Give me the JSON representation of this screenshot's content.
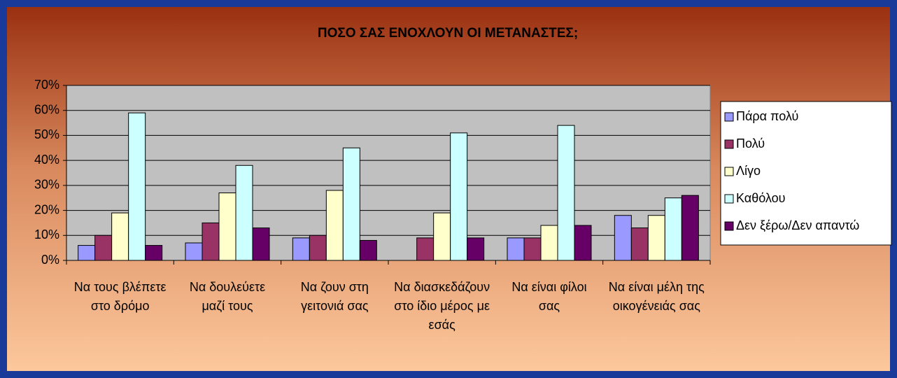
{
  "chart_data": {
    "type": "bar",
    "title": "ΠΟΣΟ ΣΑΣ ΕΝΟΧΛΟΥΝ ΟΙ ΜΕΤΑΝΑΣΤΕΣ;",
    "categories": [
      "Να τους βλέπετε στο δρόμο",
      "Να δουλεύετε μαζί τους",
      "Να ζουν στη γειτονιά σας",
      "Να διασκεδάζουν στο ίδιο μέρος με εσάς",
      "Να είναι φίλοι σας",
      "Να είναι μέλη της οικογένειάς σας"
    ],
    "series": [
      {
        "name": "Πάρα πολύ",
        "color": "#9999ff",
        "values": [
          6,
          7,
          9,
          null,
          9,
          18
        ]
      },
      {
        "name": "Πολύ",
        "color": "#993366",
        "values": [
          10,
          15,
          10,
          9,
          9,
          13
        ]
      },
      {
        "name": "Λίγο",
        "color": "#ffffcc",
        "values": [
          19,
          27,
          28,
          19,
          14,
          18
        ]
      },
      {
        "name": "Καθόλου",
        "color": "#ccffff",
        "values": [
          59,
          38,
          45,
          51,
          54,
          25
        ]
      },
      {
        "name": "Δεν ξέρω/Δεν απαντώ",
        "color": "#660066",
        "values": [
          6,
          13,
          8,
          9,
          14,
          26
        ]
      }
    ],
    "ylim": [
      0,
      70
    ],
    "yticks": [
      {
        "value": 0,
        "label": "0%"
      },
      {
        "value": 10,
        "label": "10%"
      },
      {
        "value": 20,
        "label": "20%"
      },
      {
        "value": 30,
        "label": "30%"
      },
      {
        "value": 40,
        "label": "40%"
      },
      {
        "value": 50,
        "label": "50%"
      },
      {
        "value": 60,
        "label": "60%"
      },
      {
        "value": 70,
        "label": "70%"
      }
    ],
    "grid": true,
    "legend": "right"
  }
}
